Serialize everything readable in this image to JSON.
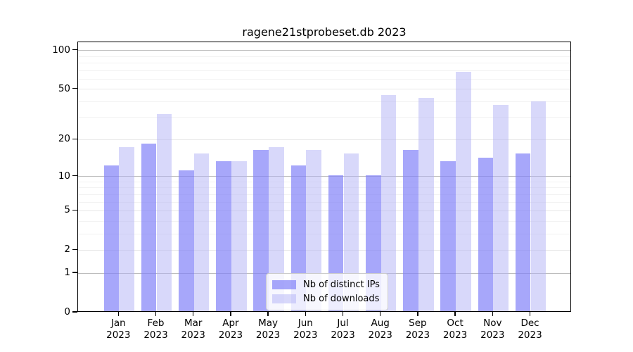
{
  "title": "ragene21stprobeset.db 2023",
  "chart_data": {
    "type": "bar",
    "title": "ragene21stprobeset.db 2023",
    "categories": [
      "Jan",
      "Feb",
      "Mar",
      "Apr",
      "May",
      "Jun",
      "Jul",
      "Aug",
      "Sep",
      "Oct",
      "Nov",
      "Dec"
    ],
    "year_label": "2023",
    "series": [
      {
        "name": "Nb of distinct IPs",
        "color": "#a7a7fa",
        "fill": "rgba(129,129,248,0.70)",
        "values": [
          12,
          18,
          11,
          13,
          16,
          12,
          10,
          10,
          16,
          13,
          14,
          15
        ]
      },
      {
        "name": "Nb of downloads",
        "color": "#d8d8fa",
        "fill": "rgba(177,177,245,0.50)",
        "values": [
          17,
          31,
          15,
          13,
          17,
          16,
          15,
          44,
          42,
          67,
          37,
          39
        ]
      }
    ],
    "yscale": "log1p",
    "ylim": [
      0,
      116
    ],
    "y_ticks": [
      100,
      50,
      20,
      10,
      5,
      2,
      1,
      0
    ],
    "y_decade_gridlines": [
      100,
      10,
      1
    ],
    "y_minor_ticks": [
      3,
      4,
      6,
      7,
      8,
      9,
      30,
      40,
      60,
      70,
      80,
      90
    ],
    "grid": true,
    "legend_position": "lower center",
    "xlabel": "",
    "ylabel": ""
  },
  "legend": {
    "items": [
      {
        "label": "Nb of distinct IPs"
      },
      {
        "label": "Nb of downloads"
      }
    ]
  }
}
